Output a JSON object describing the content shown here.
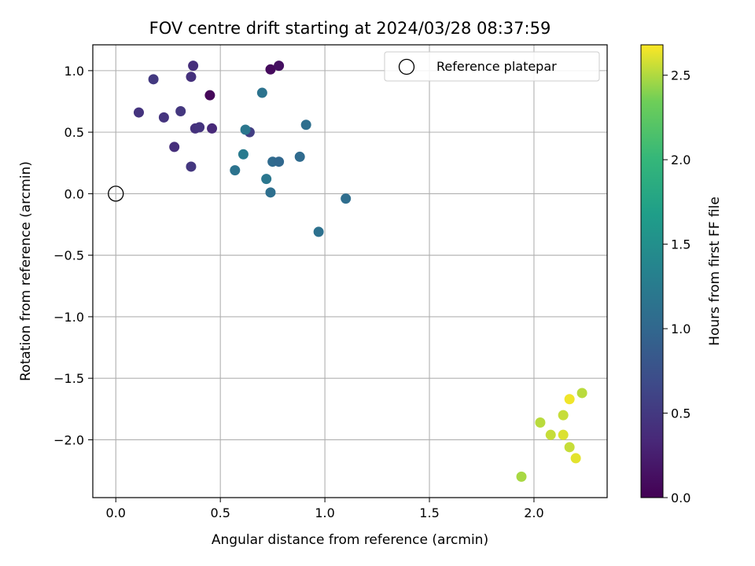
{
  "chart_data": {
    "type": "scatter",
    "title": "FOV centre drift starting at 2024/03/28 08:37:59",
    "xlabel": "Angular distance from reference (arcmin)",
    "ylabel": "Rotation from reference (arcmin)",
    "colorbar_label": "Hours from first FF file",
    "xlim": [
      -0.11,
      2.35
    ],
    "ylim": [
      -2.47,
      1.21
    ],
    "clim": [
      0.0,
      2.68
    ],
    "colormap": "viridis",
    "grid": true,
    "x_ticks": [
      {
        "value": 0.0,
        "label": "0.0"
      },
      {
        "value": 0.5,
        "label": "0.5"
      },
      {
        "value": 1.0,
        "label": "1.0"
      },
      {
        "value": 1.5,
        "label": "1.5"
      },
      {
        "value": 2.0,
        "label": "2.0"
      }
    ],
    "y_ticks": [
      {
        "value": 1.0,
        "label": "1.0"
      },
      {
        "value": 0.5,
        "label": "0.5"
      },
      {
        "value": 0.0,
        "label": "0.0"
      },
      {
        "value": -0.5,
        "label": "−0.5"
      },
      {
        "value": -1.0,
        "label": "−1.0"
      },
      {
        "value": -1.5,
        "label": "−1.5"
      },
      {
        "value": -2.0,
        "label": "−2.0"
      }
    ],
    "colorbar_ticks": [
      {
        "value": 0.0,
        "label": "0.0"
      },
      {
        "value": 0.5,
        "label": "0.5"
      },
      {
        "value": 1.0,
        "label": "1.0"
      },
      {
        "value": 1.5,
        "label": "1.5"
      },
      {
        "value": 2.0,
        "label": "2.0"
      },
      {
        "value": 2.5,
        "label": "2.5"
      }
    ],
    "legend": {
      "position": "top-right",
      "entries": [
        {
          "label": "Reference platepar",
          "marker": "open-circle"
        }
      ]
    },
    "reference_point": {
      "x": 0.0,
      "y": 0.0
    },
    "points": [
      {
        "x": 0.45,
        "y": 0.8,
        "c": 0.05
      },
      {
        "x": 0.74,
        "y": 1.01,
        "c": 0.08
      },
      {
        "x": 0.78,
        "y": 1.04,
        "c": 0.12
      },
      {
        "x": 0.37,
        "y": 1.04,
        "c": 0.4
      },
      {
        "x": 0.36,
        "y": 0.95,
        "c": 0.42
      },
      {
        "x": 0.18,
        "y": 0.93,
        "c": 0.5
      },
      {
        "x": 0.11,
        "y": 0.66,
        "c": 0.45
      },
      {
        "x": 0.23,
        "y": 0.62,
        "c": 0.45
      },
      {
        "x": 0.31,
        "y": 0.67,
        "c": 0.48
      },
      {
        "x": 0.38,
        "y": 0.53,
        "c": 0.42
      },
      {
        "x": 0.4,
        "y": 0.54,
        "c": 0.45
      },
      {
        "x": 0.46,
        "y": 0.53,
        "c": 0.35
      },
      {
        "x": 0.28,
        "y": 0.38,
        "c": 0.4
      },
      {
        "x": 0.36,
        "y": 0.22,
        "c": 0.48
      },
      {
        "x": 0.64,
        "y": 0.5,
        "c": 0.55
      },
      {
        "x": 0.62,
        "y": 0.52,
        "c": 1.2
      },
      {
        "x": 0.7,
        "y": 0.82,
        "c": 1.15
      },
      {
        "x": 0.91,
        "y": 0.56,
        "c": 1.1
      },
      {
        "x": 0.61,
        "y": 0.32,
        "c": 1.25
      },
      {
        "x": 0.57,
        "y": 0.19,
        "c": 1.15
      },
      {
        "x": 0.75,
        "y": 0.26,
        "c": 1.05
      },
      {
        "x": 0.78,
        "y": 0.26,
        "c": 1.0
      },
      {
        "x": 0.88,
        "y": 0.3,
        "c": 1.05
      },
      {
        "x": 0.72,
        "y": 0.12,
        "c": 1.2
      },
      {
        "x": 0.74,
        "y": 0.01,
        "c": 1.1
      },
      {
        "x": 1.1,
        "y": -0.04,
        "c": 1.08
      },
      {
        "x": 0.97,
        "y": -0.31,
        "c": 1.12
      },
      {
        "x": 2.23,
        "y": -1.62,
        "c": 2.52
      },
      {
        "x": 2.17,
        "y": -1.67,
        "c": 2.65
      },
      {
        "x": 2.14,
        "y": -1.8,
        "c": 2.55
      },
      {
        "x": 2.03,
        "y": -1.86,
        "c": 2.52
      },
      {
        "x": 2.08,
        "y": -1.96,
        "c": 2.55
      },
      {
        "x": 2.14,
        "y": -1.96,
        "c": 2.6
      },
      {
        "x": 2.17,
        "y": -2.06,
        "c": 2.55
      },
      {
        "x": 2.2,
        "y": -2.15,
        "c": 2.62
      },
      {
        "x": 1.94,
        "y": -2.3,
        "c": 2.48
      }
    ]
  }
}
